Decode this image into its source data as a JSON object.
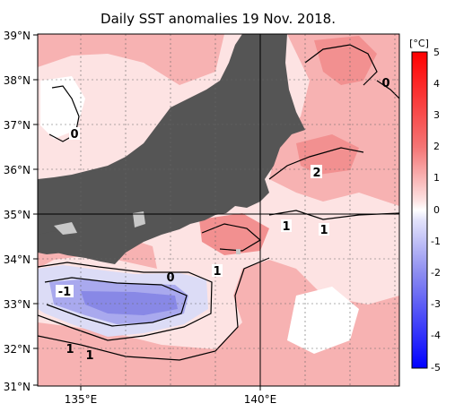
{
  "title": "Daily SST anomalies 19 Nov. 2018.",
  "lat_labels": [
    "39°N",
    "38°N",
    "37°N",
    "36°N",
    "35°N",
    "34°N",
    "33°N",
    "32°N",
    "31°N"
  ],
  "lon_labels": [
    "135°E",
    "140°E"
  ],
  "colorbar": {
    "unit": "[°C]",
    "ticks": [
      "5",
      "4",
      "3",
      "2",
      "1",
      "0",
      "-1",
      "-2",
      "-3",
      "-4",
      "-5"
    ]
  },
  "contour_labels": [
    "0",
    "2",
    "1",
    "1",
    "0",
    "-1",
    "1",
    "1",
    "1",
    "0"
  ],
  "colors": {
    "land": "#555555",
    "warm_strong": "#e8393c",
    "warm_mid": "#f49a9a",
    "warm_light": "#fbdada",
    "cool_mid": "#8f8fe8",
    "cool_light": "#d7d7f6",
    "neutral": "#ffffff"
  }
}
